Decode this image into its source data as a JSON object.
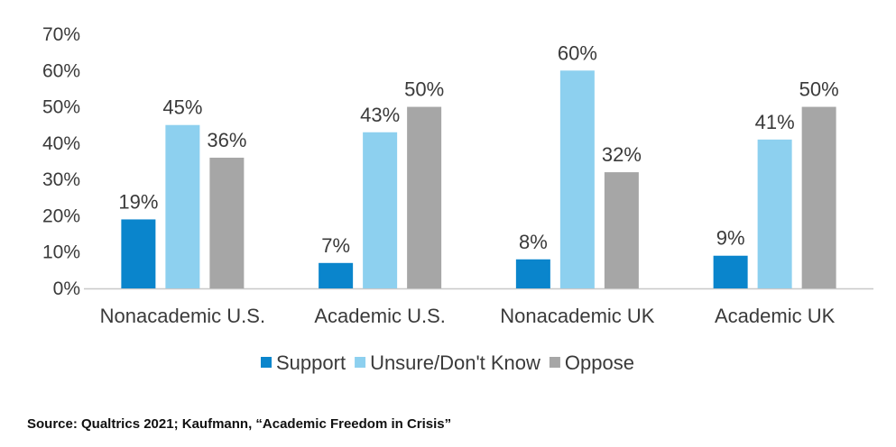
{
  "chart_data": {
    "type": "bar",
    "categories": [
      "Nonacademic U.S.",
      "Academic U.S.",
      "Nonacademic UK",
      "Academic UK"
    ],
    "series": [
      {
        "name": "Support",
        "values": [
          19,
          7,
          8,
          9
        ],
        "labels": [
          "19%",
          "7%",
          "8%",
          "9%"
        ],
        "color": "#0a85cc"
      },
      {
        "name": "Unsure/Don't Know",
        "values": [
          45,
          43,
          60,
          41
        ],
        "labels": [
          "45%",
          "43%",
          "60%",
          "41%"
        ],
        "color": "#8dd0ef"
      },
      {
        "name": "Oppose",
        "values": [
          36,
          50,
          32,
          50
        ],
        "labels": [
          "36%",
          "50%",
          "32%",
          "50%"
        ],
        "color": "#a6a6a6"
      }
    ],
    "yticks": [
      "0%",
      "10%",
      "20%",
      "30%",
      "40%",
      "50%",
      "60%",
      "70%"
    ],
    "ylim": [
      0,
      70
    ],
    "grid": false,
    "legend_position": "bottom"
  },
  "source": "Source: Qualtrics 2021; Kaufmann, “Academic Freedom in Crisis”"
}
